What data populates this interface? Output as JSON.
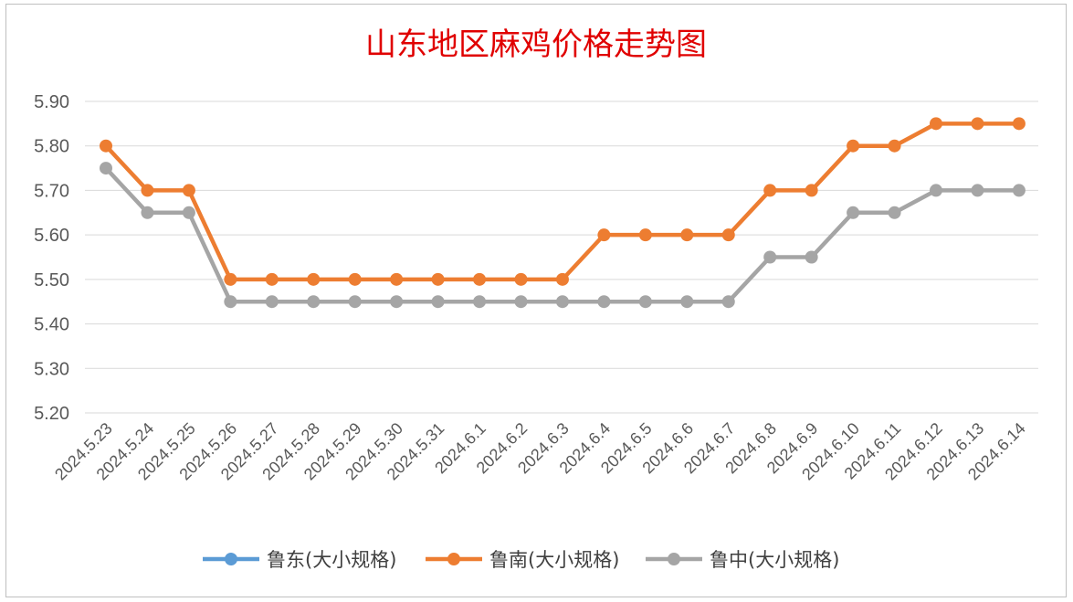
{
  "chart_data": {
    "type": "line",
    "title": "山东地区麻鸡价格走势图",
    "categories": [
      "2024.5.23",
      "2024.5.24",
      "2024.5.25",
      "2024.5.26",
      "2024.5.27",
      "2024.5.28",
      "2024.5.29",
      "2024.5.30",
      "2024.5.31",
      "2024.6.1",
      "2024.6.2",
      "2024.6.3",
      "2024.6.4",
      "2024.6.5",
      "2024.6.6",
      "2024.6.7",
      "2024.6.8",
      "2024.6.9",
      "2024.6.10",
      "2024.6.11",
      "2024.6.12",
      "2024.6.13",
      "2024.6.14"
    ],
    "ylim": [
      5.2,
      5.9
    ],
    "yticks": [
      "5.20",
      "5.30",
      "5.40",
      "5.50",
      "5.60",
      "5.70",
      "5.80",
      "5.90"
    ],
    "grid": true,
    "legend_position": "bottom",
    "series": [
      {
        "name": "鲁东(大小规格)",
        "color": "#5b9bd5",
        "values": [
          null,
          null,
          null,
          null,
          null,
          null,
          null,
          null,
          null,
          null,
          null,
          null,
          null,
          null,
          null,
          null,
          null,
          null,
          null,
          null,
          null,
          null,
          null
        ]
      },
      {
        "name": "鲁南(大小规格)",
        "color": "#ed7d31",
        "values": [
          5.8,
          5.7,
          5.7,
          5.5,
          5.5,
          5.5,
          5.5,
          5.5,
          5.5,
          5.5,
          5.5,
          5.5,
          5.6,
          5.6,
          5.6,
          5.6,
          5.7,
          5.7,
          5.8,
          5.8,
          5.85,
          5.85,
          5.85
        ]
      },
      {
        "name": "鲁中(大小规格)",
        "color": "#a5a5a5",
        "values": [
          5.75,
          5.65,
          5.65,
          5.45,
          5.45,
          5.45,
          5.45,
          5.45,
          5.45,
          5.45,
          5.45,
          5.45,
          5.45,
          5.45,
          5.45,
          5.45,
          5.55,
          5.55,
          5.65,
          5.65,
          5.7,
          5.7,
          5.7
        ]
      }
    ]
  }
}
